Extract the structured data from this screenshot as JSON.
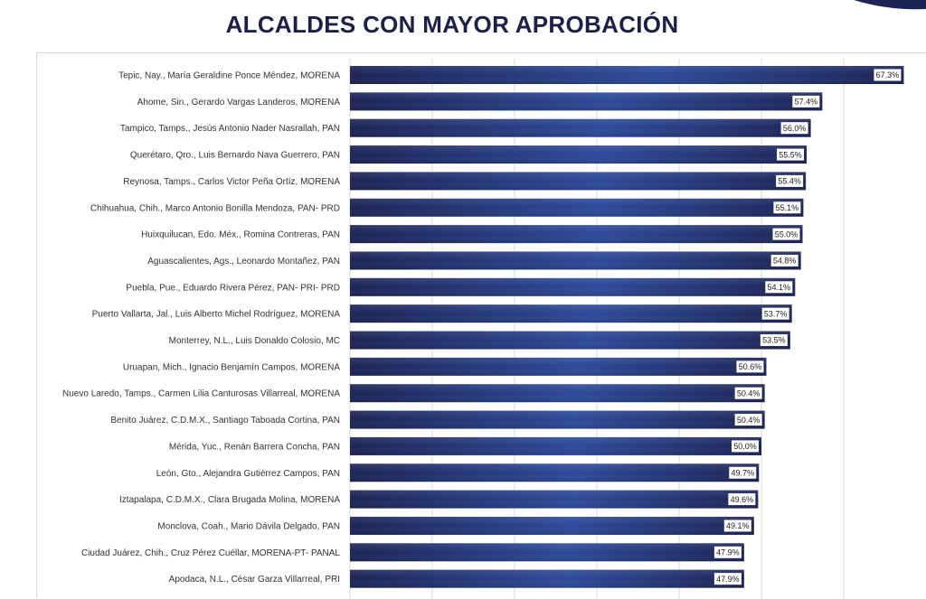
{
  "title": "ALCALDES CON MAYOR APROBACIÓN",
  "colors": {
    "title": "#1b2049",
    "bar_dark": "#1c2456",
    "bar_light": "#2d4a9a",
    "value_box": "#ffffff",
    "gridline": "#d9d9d9"
  },
  "chart_data": {
    "type": "bar",
    "orientation": "horizontal",
    "title": "ALCALDES CON MAYOR APROBACIÓN",
    "xlabel": "",
    "ylabel": "",
    "xlim": [
      0,
      70
    ],
    "grid": true,
    "categories": [
      "Tepic, Nay., María Geraldine Ponce Méndez, MORENA",
      "Ahome, Sin., Gerardo Vargas Landeros, MORENA",
      "Tampico, Tamps., Jesús Antonio Nader Nasrallah, PAN",
      "Querétaro, Qro., Luis Bernardo Nava Guerrero, PAN",
      "Reynosa, Tamps., Carlos Victor Peña Ortíz, MORENA",
      "Chihuahua, Chih., Marco Antonio Bonilla Mendoza, PAN- PRD",
      "Huixquilucan, Edo. Méx., Romina Contreras, PAN",
      "Aguascalientes, Ags., Leonardo Montañez, PAN",
      "Puebla, Pue., Eduardo Rivera Pérez, PAN- PRI- PRD",
      "Puerto Vallarta, Jal., Luis Alberto Michel Rodríguez, MORENA",
      "Monterrey, N.L., Luis Donaldo Colosio, MC",
      "Uruapan, Mich., Ignacio Benjamín Campos, MORENA",
      "Nuevo Laredo, Tamps., Carmen Lilia Canturosas Villarreal, MORENA",
      "Benito Juárez, C.D.M.X., Santiago Taboada Cortina, PAN",
      "Mérida, Yuc., Renán Barrera Concha, PAN",
      "León, Gto., Alejandra Gutiérrez Campos, PAN",
      "Iztapalapa, C.D.M.X., Clara Brugada Molina, MORENA",
      "Monclova, Coah., Mario Dávila Delgado, PAN",
      "Ciudad Juárez, Chih., Cruz Pérez Cuéllar, MORENA-PT- PANAL",
      "Apodaca, N.L., César Garza Villarreal, PRI"
    ],
    "values": [
      67.3,
      57.4,
      56.0,
      55.5,
      55.4,
      55.1,
      55.0,
      54.8,
      54.1,
      53.7,
      53.5,
      50.6,
      50.4,
      50.4,
      50.0,
      49.7,
      49.6,
      49.1,
      47.9,
      47.9
    ],
    "value_labels": [
      "67.3%",
      "57.4%",
      "56.0%",
      "55.5%",
      "55.4%",
      "55.1%",
      "55.0%",
      "54.8%",
      "54.1%",
      "53.7%",
      "53.5%",
      "50.6%",
      "50.4%",
      "50.4%",
      "50.0%",
      "49.7%",
      "49.6%",
      "49.1%",
      "47.9%",
      "47.9%"
    ]
  }
}
